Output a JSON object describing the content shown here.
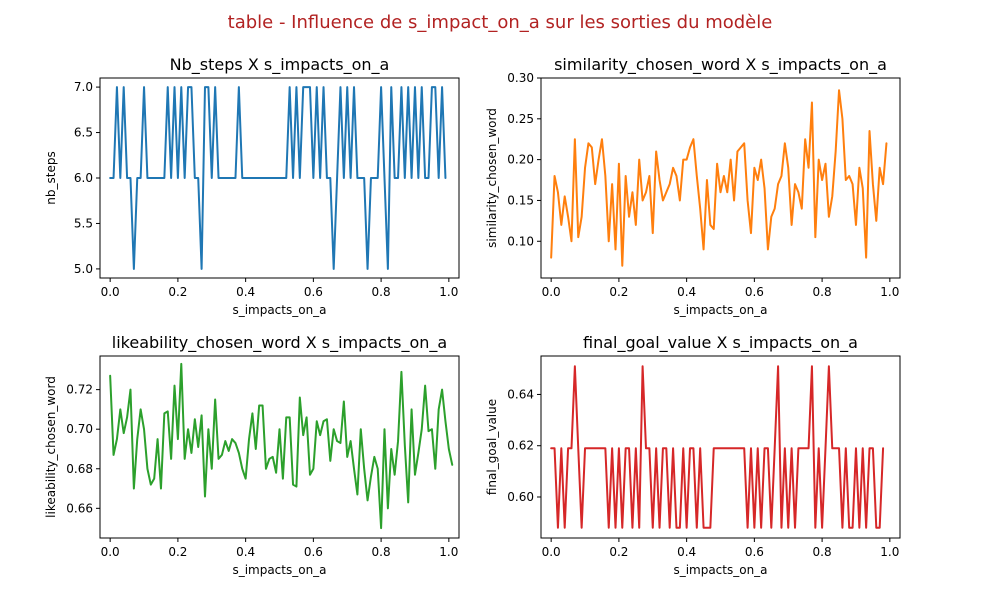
{
  "suptitle": "table - Influence de s_impact_on_a sur les sorties du modèle",
  "colors": {
    "title": "#b22222",
    "s1": "#1f77b4",
    "s2": "#ff7f0e",
    "s3": "#2ca02c",
    "s4": "#d62728"
  },
  "chart_data": [
    {
      "type": "line",
      "title": "Nb_steps X s_impacts_on_a",
      "xlabel": "s_impacts_on_a",
      "ylabel": "nb_steps",
      "xlim": [
        -0.03,
        1.03
      ],
      "ylim": [
        4.9,
        7.1
      ],
      "xticks": [
        0.0,
        0.2,
        0.4,
        0.6,
        0.8,
        1.0
      ],
      "xtick_labels": [
        "0.0",
        "0.2",
        "0.4",
        "0.6",
        "0.8",
        "1.0"
      ],
      "yticks": [
        5.0,
        5.5,
        6.0,
        6.5,
        7.0
      ],
      "ytick_labels": [
        "5.0",
        "5.5",
        "6.0",
        "6.5",
        "7.0"
      ],
      "color": "#1f77b4",
      "x_start": 0,
      "x_step": 0.01,
      "values": [
        6,
        6,
        7,
        6,
        7,
        6,
        6,
        5,
        6,
        6,
        7,
        6,
        6,
        6,
        6,
        6,
        6,
        7,
        6,
        7,
        6,
        7,
        6,
        7,
        7,
        6,
        6,
        5,
        7,
        7,
        6,
        7,
        6,
        6,
        6,
        6,
        6,
        6,
        7,
        6,
        6,
        6,
        6,
        6,
        6,
        6,
        6,
        6,
        6,
        6,
        6,
        6,
        6,
        7,
        6,
        7,
        6,
        7,
        7,
        7,
        6,
        7,
        6,
        7,
        6,
        6,
        5,
        6,
        7,
        6,
        7,
        6,
        7,
        6,
        6,
        6,
        5,
        6,
        6,
        6,
        7,
        6,
        5,
        7,
        6,
        6,
        7,
        6,
        7,
        6,
        7,
        6,
        7,
        6,
        6,
        7,
        7,
        6,
        7,
        6
      ]
    },
    {
      "type": "line",
      "title": "similarity_chosen_word X s_impacts_on_a",
      "xlabel": "s_impacts_on_a",
      "ylabel": "similarity_chosen_word",
      "xlim": [
        -0.03,
        1.03
      ],
      "ylim": [
        0.055,
        0.3
      ],
      "xticks": [
        0.0,
        0.2,
        0.4,
        0.6,
        0.8,
        1.0
      ],
      "xtick_labels": [
        "0.0",
        "0.2",
        "0.4",
        "0.6",
        "0.8",
        "1.0"
      ],
      "yticks": [
        0.1,
        0.15,
        0.2,
        0.25,
        0.3
      ],
      "ytick_labels": [
        "0.10",
        "0.15",
        "0.20",
        "0.25",
        "0.30"
      ],
      "color": "#ff7f0e",
      "x_start": 0,
      "x_step": 0.01,
      "values": [
        0.08,
        0.18,
        0.16,
        0.12,
        0.155,
        0.13,
        0.1,
        0.225,
        0.105,
        0.13,
        0.19,
        0.22,
        0.215,
        0.17,
        0.2,
        0.225,
        0.18,
        0.1,
        0.17,
        0.09,
        0.195,
        0.07,
        0.18,
        0.13,
        0.16,
        0.12,
        0.2,
        0.15,
        0.16,
        0.18,
        0.11,
        0.21,
        0.175,
        0.15,
        0.16,
        0.17,
        0.19,
        0.18,
        0.15,
        0.2,
        0.2,
        0.215,
        0.225,
        0.18,
        0.14,
        0.09,
        0.175,
        0.12,
        0.115,
        0.195,
        0.16,
        0.18,
        0.16,
        0.2,
        0.15,
        0.21,
        0.215,
        0.22,
        0.15,
        0.11,
        0.19,
        0.175,
        0.2,
        0.165,
        0.09,
        0.13,
        0.14,
        0.17,
        0.18,
        0.22,
        0.19,
        0.12,
        0.17,
        0.16,
        0.14,
        0.225,
        0.19,
        0.27,
        0.105,
        0.2,
        0.175,
        0.195,
        0.13,
        0.155,
        0.21,
        0.285,
        0.25,
        0.175,
        0.18,
        0.17,
        0.12,
        0.19,
        0.165,
        0.08,
        0.235,
        0.17,
        0.125,
        0.19,
        0.17,
        0.22
      ]
    },
    {
      "type": "line",
      "title": "likeability_chosen_word X s_impacts_on_a",
      "xlabel": "s_impacts_on_a",
      "ylabel": "likeability_chosen_word",
      "xlim": [
        -0.03,
        1.03
      ],
      "ylim": [
        0.645,
        0.737
      ],
      "xticks": [
        0.0,
        0.2,
        0.4,
        0.6,
        0.8,
        1.0
      ],
      "xtick_labels": [
        "0.0",
        "0.2",
        "0.4",
        "0.6",
        "0.8",
        "1.0"
      ],
      "yticks": [
        0.66,
        0.68,
        0.7,
        0.72
      ],
      "ytick_labels": [
        "0.66",
        "0.68",
        "0.70",
        "0.72"
      ],
      "color": "#2ca02c",
      "x_start": 0,
      "x_step": 0.01,
      "values": [
        0.727,
        0.687,
        0.695,
        0.71,
        0.698,
        0.706,
        0.72,
        0.67,
        0.695,
        0.71,
        0.7,
        0.68,
        0.672,
        0.675,
        0.695,
        0.67,
        0.708,
        0.709,
        0.685,
        0.722,
        0.695,
        0.733,
        0.685,
        0.7,
        0.688,
        0.705,
        0.691,
        0.707,
        0.666,
        0.7,
        0.68,
        0.715,
        0.685,
        0.687,
        0.694,
        0.689,
        0.695,
        0.693,
        0.688,
        0.68,
        0.675,
        0.695,
        0.708,
        0.69,
        0.712,
        0.712,
        0.68,
        0.685,
        0.686,
        0.678,
        0.7,
        0.675,
        0.706,
        0.706,
        0.672,
        0.671,
        0.716,
        0.697,
        0.706,
        0.677,
        0.68,
        0.704,
        0.697,
        0.704,
        0.705,
        0.684,
        0.7,
        0.694,
        0.693,
        0.714,
        0.686,
        0.694,
        0.68,
        0.667,
        0.7,
        0.68,
        0.664,
        0.676,
        0.686,
        0.68,
        0.65,
        0.7,
        0.66,
        0.69,
        0.677,
        0.694,
        0.729,
        0.692,
        0.663,
        0.71,
        0.677,
        0.688,
        0.7,
        0.722,
        0.699,
        0.7,
        0.68,
        0.71,
        0.72,
        0.704,
        0.69,
        0.682
      ]
    },
    {
      "type": "line",
      "title": "final_goal_value X s_impacts_on_a",
      "xlabel": "s_impacts_on_a",
      "ylabel": "final_goal_value",
      "xlim": [
        -0.03,
        1.03
      ],
      "ylim": [
        0.584,
        0.655
      ],
      "xticks": [
        0.0,
        0.2,
        0.4,
        0.6,
        0.8,
        1.0
      ],
      "xtick_labels": [
        "0.0",
        "0.2",
        "0.4",
        "0.6",
        "0.8",
        "1.0"
      ],
      "yticks": [
        0.6,
        0.62,
        0.64
      ],
      "ytick_labels": [
        "0.60",
        "0.62",
        "0.64"
      ],
      "color": "#d62728",
      "x_start": 0,
      "x_step": 0.01,
      "values": [
        0.619,
        0.619,
        0.588,
        0.619,
        0.588,
        0.619,
        0.619,
        0.651,
        0.619,
        0.588,
        0.619,
        0.619,
        0.619,
        0.619,
        0.619,
        0.619,
        0.619,
        0.588,
        0.619,
        0.588,
        0.619,
        0.588,
        0.619,
        0.619,
        0.588,
        0.619,
        0.588,
        0.651,
        0.619,
        0.619,
        0.588,
        0.619,
        0.588,
        0.619,
        0.619,
        0.588,
        0.619,
        0.588,
        0.588,
        0.619,
        0.588,
        0.619,
        0.619,
        0.588,
        0.619,
        0.588,
        0.588,
        0.588,
        0.619,
        0.619,
        0.619,
        0.619,
        0.619,
        0.619,
        0.619,
        0.619,
        0.619,
        0.619,
        0.588,
        0.619,
        0.588,
        0.619,
        0.588,
        0.619,
        0.619,
        0.588,
        0.619,
        0.651,
        0.588,
        0.619,
        0.588,
        0.619,
        0.588,
        0.619,
        0.619,
        0.619,
        0.619,
        0.651,
        0.588,
        0.619,
        0.588,
        0.619,
        0.651,
        0.619,
        0.619,
        0.619,
        0.588,
        0.619,
        0.588,
        0.588,
        0.619,
        0.588,
        0.619,
        0.588,
        0.619,
        0.619,
        0.588,
        0.588,
        0.619
      ]
    }
  ]
}
